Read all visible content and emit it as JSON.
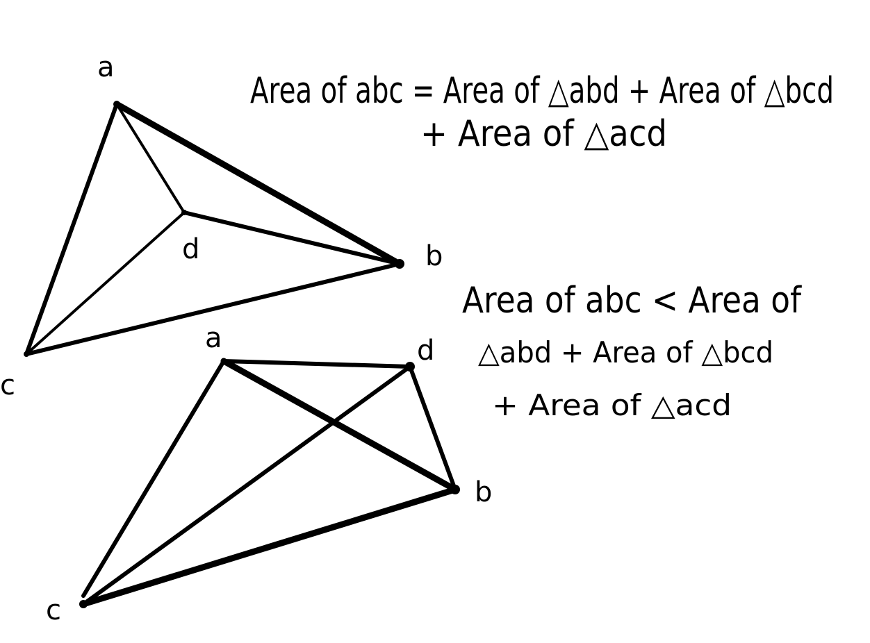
{
  "diagram_top": {
    "vertices": {
      "a": "a",
      "b": "b",
      "c": "c",
      "d": "d"
    }
  },
  "diagram_bottom": {
    "vertices": {
      "a": "a",
      "b": "b",
      "c": "c",
      "d": "d"
    }
  },
  "notes": {
    "top_line1": "Area of abc = Area of △abd + Area of △bcd",
    "top_line2": "+ Area of △acd",
    "bottom_line1": "Area of abc < Area of",
    "bottom_line2": "△abd + Area of △bcd",
    "bottom_line3": "+ Area of △acd"
  }
}
